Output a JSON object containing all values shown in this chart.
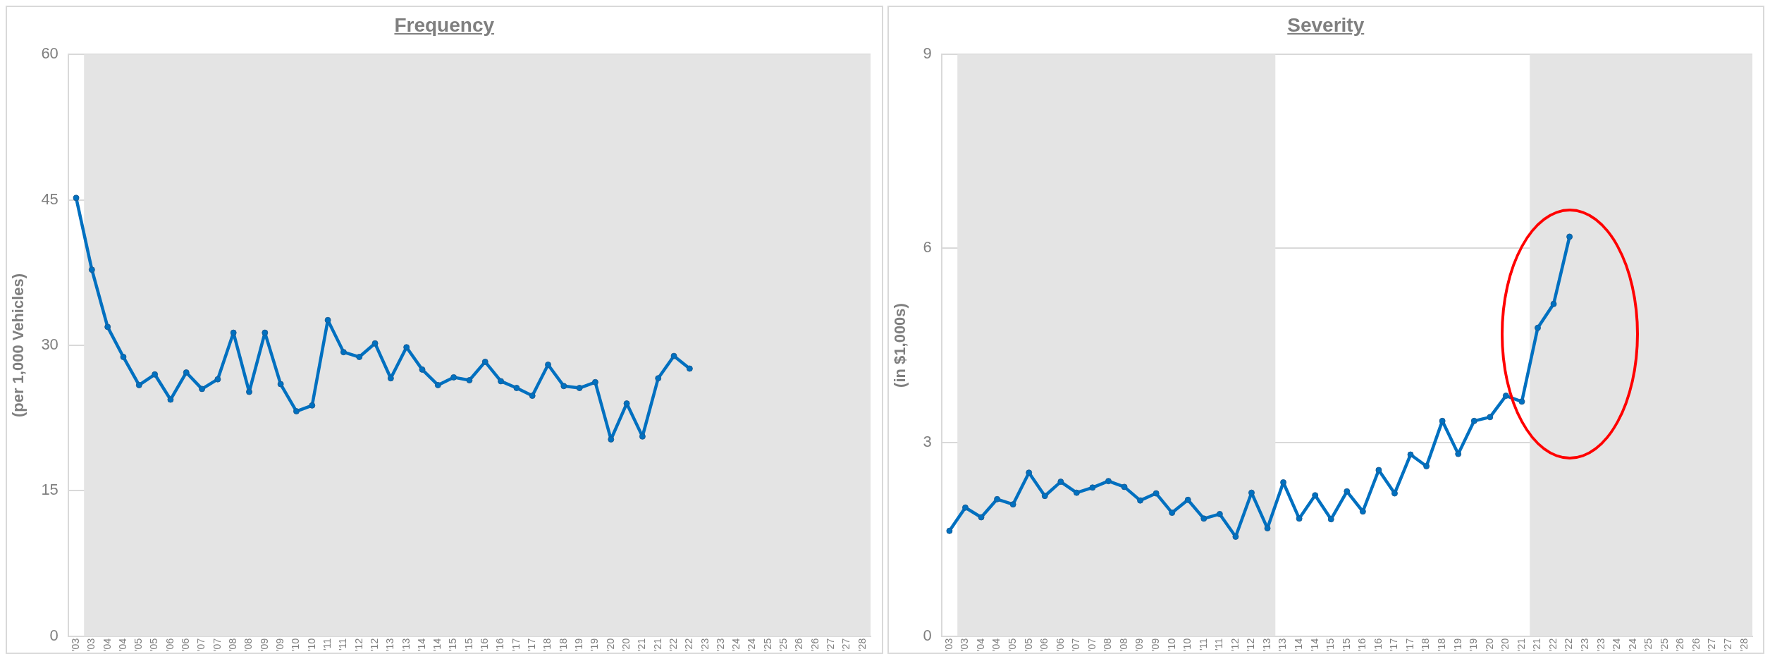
{
  "chart_data": [
    {
      "type": "line",
      "title": "Frequency",
      "ylabel": "(per 1,000 Vehicles)",
      "marker": "circle",
      "grid": "y",
      "x": [
        "2003-01",
        "2003-07",
        "2004-01",
        "2004-07",
        "2005-01",
        "2005-07",
        "2006-01",
        "2006-07",
        "2007-01",
        "2007-07",
        "2008-01",
        "2008-07",
        "2009-01",
        "2009-07",
        "2010-01",
        "2010-07",
        "2011-01",
        "2011-07",
        "2012-01",
        "2012-07",
        "2013-01",
        "2013-07",
        "2014-01",
        "2014-07",
        "2015-01",
        "2015-07",
        "2016-01",
        "2016-07",
        "2017-01",
        "2017-07",
        "2018-01",
        "2018-07",
        "2019-01",
        "2019-07",
        "2020-01",
        "2020-07",
        "2021-01",
        "2021-07",
        "2022-01",
        "2022-07"
      ],
      "series": [
        {
          "color": "#0070c0",
          "values": [
            45.2,
            37.8,
            31.9,
            28.8,
            25.9,
            27.0,
            24.4,
            27.2,
            25.5,
            26.5,
            31.3,
            25.2,
            31.3,
            26.0,
            23.2,
            23.8,
            32.6,
            29.3,
            28.8,
            30.2,
            26.6,
            29.8,
            27.5,
            25.9,
            26.7,
            26.4,
            28.3,
            26.3,
            25.6,
            24.8,
            28.0,
            25.8,
            25.6,
            26.2,
            20.3,
            24.0,
            20.6,
            26.6,
            28.9,
            27.6
          ]
        }
      ],
      "xlim": [
        "2002-10",
        "2028-04"
      ],
      "xticks": [
        {
          "value": "2003-01",
          "label": "'03"
        },
        {
          "value": "2003-07",
          "label": "'03"
        },
        {
          "value": "2004-01",
          "label": "'04"
        },
        {
          "value": "2004-07",
          "label": "'04"
        },
        {
          "value": "2005-01",
          "label": "'05"
        },
        {
          "value": "2005-07",
          "label": "'05"
        },
        {
          "value": "2006-01",
          "label": "'06"
        },
        {
          "value": "2006-07",
          "label": "'06"
        },
        {
          "value": "2007-01",
          "label": "'07"
        },
        {
          "value": "2007-07",
          "label": "'07"
        },
        {
          "value": "2008-01",
          "label": "'08"
        },
        {
          "value": "2008-07",
          "label": "'08"
        },
        {
          "value": "2009-01",
          "label": "'09"
        },
        {
          "value": "2009-07",
          "label": "'09"
        },
        {
          "value": "2010-01",
          "label": "'10"
        },
        {
          "value": "2010-07",
          "label": "'10"
        },
        {
          "value": "2011-01",
          "label": "'11"
        },
        {
          "value": "2011-07",
          "label": "'11"
        },
        {
          "value": "2012-01",
          "label": "'12"
        },
        {
          "value": "2012-07",
          "label": "'12"
        },
        {
          "value": "2013-01",
          "label": "'13"
        },
        {
          "value": "2013-07",
          "label": "'13"
        },
        {
          "value": "2014-01",
          "label": "'14"
        },
        {
          "value": "2014-07",
          "label": "'14"
        },
        {
          "value": "2015-01",
          "label": "'15"
        },
        {
          "value": "2015-07",
          "label": "'15"
        },
        {
          "value": "2016-01",
          "label": "'16"
        },
        {
          "value": "2016-07",
          "label": "'16"
        },
        {
          "value": "2017-01",
          "label": "'17"
        },
        {
          "value": "2017-07",
          "label": "'17"
        },
        {
          "value": "2018-01",
          "label": "'18"
        },
        {
          "value": "2018-07",
          "label": "'18"
        },
        {
          "value": "2019-01",
          "label": "'19"
        },
        {
          "value": "2019-07",
          "label": "'19"
        },
        {
          "value": "2020-01",
          "label": "'20"
        },
        {
          "value": "2020-07",
          "label": "'20"
        },
        {
          "value": "2021-01",
          "label": "'21"
        },
        {
          "value": "2021-07",
          "label": "'21"
        },
        {
          "value": "2022-01",
          "label": "'22"
        },
        {
          "value": "2022-07",
          "label": "'22"
        },
        {
          "value": "2023-01",
          "label": "'23"
        },
        {
          "value": "2023-07",
          "label": "'23"
        },
        {
          "value": "2024-01",
          "label": "'24"
        },
        {
          "value": "2024-07",
          "label": "'24"
        },
        {
          "value": "2025-01",
          "label": "'25"
        },
        {
          "value": "2025-07",
          "label": "'25"
        },
        {
          "value": "2026-01",
          "label": "'26"
        },
        {
          "value": "2026-07",
          "label": "'26"
        },
        {
          "value": "2027-01",
          "label": "'27"
        },
        {
          "value": "2027-07",
          "label": "'27"
        },
        {
          "value": "2028-01",
          "label": "'28"
        }
      ],
      "ylim": [
        0,
        60
      ],
      "yticks": [
        0,
        15,
        30,
        45,
        60
      ],
      "bands": [
        {
          "axis": "x",
          "from": "2003-04",
          "to": "2028-04",
          "color": "#e4e4e4"
        }
      ]
    },
    {
      "type": "line",
      "title": "Severity",
      "ylabel": "(in $1,000s)",
      "marker": "circle",
      "grid": "y",
      "x": [
        "2003-01",
        "2003-07",
        "2004-01",
        "2004-07",
        "2005-01",
        "2005-07",
        "2006-01",
        "2006-07",
        "2007-01",
        "2007-07",
        "2008-01",
        "2008-07",
        "2009-01",
        "2009-07",
        "2010-01",
        "2010-07",
        "2011-01",
        "2011-07",
        "2012-01",
        "2012-07",
        "2013-01",
        "2013-07",
        "2014-01",
        "2014-07",
        "2015-01",
        "2015-07",
        "2016-01",
        "2016-07",
        "2017-01",
        "2017-07",
        "2018-01",
        "2018-07",
        "2019-01",
        "2019-07",
        "2020-01",
        "2020-07",
        "2021-01",
        "2021-07",
        "2022-01",
        "2022-07"
      ],
      "series": [
        {
          "color": "#0070c0",
          "values": [
            1.63,
            1.99,
            1.84,
            2.12,
            2.04,
            2.53,
            2.17,
            2.39,
            2.22,
            2.3,
            2.4,
            2.31,
            2.1,
            2.21,
            1.91,
            2.11,
            1.82,
            1.89,
            1.54,
            2.22,
            1.67,
            2.38,
            1.82,
            2.18,
            1.81,
            2.24,
            1.93,
            2.57,
            2.21,
            2.81,
            2.63,
            3.33,
            2.82,
            3.33,
            3.39,
            3.72,
            3.63,
            4.77,
            5.14,
            6.18
          ]
        }
      ],
      "xlim": [
        "2002-10",
        "2028-04"
      ],
      "xticks": [
        {
          "value": "2003-01",
          "label": "'03"
        },
        {
          "value": "2003-07",
          "label": "'03"
        },
        {
          "value": "2004-01",
          "label": "'04"
        },
        {
          "value": "2004-07",
          "label": "'04"
        },
        {
          "value": "2005-01",
          "label": "'05"
        },
        {
          "value": "2005-07",
          "label": "'05"
        },
        {
          "value": "2006-01",
          "label": "'06"
        },
        {
          "value": "2006-07",
          "label": "'06"
        },
        {
          "value": "2007-01",
          "label": "'07"
        },
        {
          "value": "2007-07",
          "label": "'07"
        },
        {
          "value": "2008-01",
          "label": "'08"
        },
        {
          "value": "2008-07",
          "label": "'08"
        },
        {
          "value": "2009-01",
          "label": "'09"
        },
        {
          "value": "2009-07",
          "label": "'09"
        },
        {
          "value": "2010-01",
          "label": "'10"
        },
        {
          "value": "2010-07",
          "label": "'10"
        },
        {
          "value": "2011-01",
          "label": "'11"
        },
        {
          "value": "2011-07",
          "label": "'11"
        },
        {
          "value": "2012-01",
          "label": "'12"
        },
        {
          "value": "2012-07",
          "label": "'12"
        },
        {
          "value": "2013-01",
          "label": "'13"
        },
        {
          "value": "2013-07",
          "label": "'13"
        },
        {
          "value": "2014-01",
          "label": "'14"
        },
        {
          "value": "2014-07",
          "label": "'14"
        },
        {
          "value": "2015-01",
          "label": "'15"
        },
        {
          "value": "2015-07",
          "label": "'15"
        },
        {
          "value": "2016-01",
          "label": "'16"
        },
        {
          "value": "2016-07",
          "label": "'16"
        },
        {
          "value": "2017-01",
          "label": "'17"
        },
        {
          "value": "2017-07",
          "label": "'17"
        },
        {
          "value": "2018-01",
          "label": "'18"
        },
        {
          "value": "2018-07",
          "label": "'18"
        },
        {
          "value": "2019-01",
          "label": "'19"
        },
        {
          "value": "2019-07",
          "label": "'19"
        },
        {
          "value": "2020-01",
          "label": "'20"
        },
        {
          "value": "2020-07",
          "label": "'20"
        },
        {
          "value": "2021-01",
          "label": "'21"
        },
        {
          "value": "2021-07",
          "label": "'21"
        },
        {
          "value": "2022-01",
          "label": "'22"
        },
        {
          "value": "2022-07",
          "label": "'22"
        },
        {
          "value": "2023-01",
          "label": "'23"
        },
        {
          "value": "2023-07",
          "label": "'23"
        },
        {
          "value": "2024-01",
          "label": "'24"
        },
        {
          "value": "2024-07",
          "label": "'24"
        },
        {
          "value": "2025-01",
          "label": "'25"
        },
        {
          "value": "2025-07",
          "label": "'25"
        },
        {
          "value": "2026-01",
          "label": "'26"
        },
        {
          "value": "2026-07",
          "label": "'26"
        },
        {
          "value": "2027-01",
          "label": "'27"
        },
        {
          "value": "2027-07",
          "label": "'27"
        },
        {
          "value": "2028-01",
          "label": "'28"
        }
      ],
      "ylim": [
        0,
        9
      ],
      "yticks": [
        0,
        3,
        6,
        9
      ],
      "bands": [
        {
          "axis": "x",
          "from": "2003-04",
          "to": "2013-04",
          "color": "#e4e4e4"
        },
        {
          "axis": "x",
          "from": "2021-04",
          "to": "2028-04",
          "color": "#e4e4e4"
        }
      ]
    }
  ]
}
